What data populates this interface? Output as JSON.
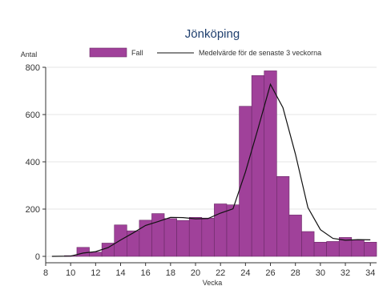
{
  "chart_data": {
    "type": "bar",
    "title": "Jönköping",
    "ylabel": "Antal",
    "xlabel": "Vecka",
    "xlim": [
      8,
      34.5
    ],
    "ylim": [
      0,
      800
    ],
    "xticks": [
      8,
      10,
      12,
      14,
      16,
      18,
      20,
      22,
      24,
      26,
      28,
      30,
      32,
      34
    ],
    "yticks": [
      0,
      200,
      400,
      600,
      800
    ],
    "grid": true,
    "legend_position": "top",
    "series": [
      {
        "name": "Fall",
        "kind": "bar",
        "color": "#a0419a",
        "x": [
          9,
          10,
          11,
          12,
          13,
          14,
          15,
          16,
          17,
          18,
          19,
          20,
          21,
          22,
          23,
          24,
          25,
          26,
          27,
          28,
          29,
          30,
          31,
          32,
          33,
          34
        ],
        "values": [
          0,
          3,
          38,
          18,
          56,
          133,
          108,
          153,
          181,
          160,
          152,
          165,
          162,
          222,
          218,
          635,
          765,
          785,
          338,
          175,
          105,
          60,
          63,
          80,
          70,
          60
        ]
      },
      {
        "name": "Medelvärde för de senaste 3 veckorna",
        "kind": "line",
        "color": "#111111",
        "x": [
          8.5,
          10,
          11,
          12,
          13,
          14,
          15,
          16,
          17,
          18,
          19,
          20,
          21,
          22,
          23,
          24,
          25,
          26,
          27,
          28,
          29,
          30,
          31,
          32,
          33,
          34
        ],
        "values": [
          0,
          1,
          14,
          20,
          37,
          69,
          99,
          131,
          147,
          165,
          164,
          159,
          160,
          183,
          201,
          358,
          539,
          728,
          629,
          433,
          206,
          113,
          76,
          68,
          71,
          70
        ]
      }
    ]
  }
}
